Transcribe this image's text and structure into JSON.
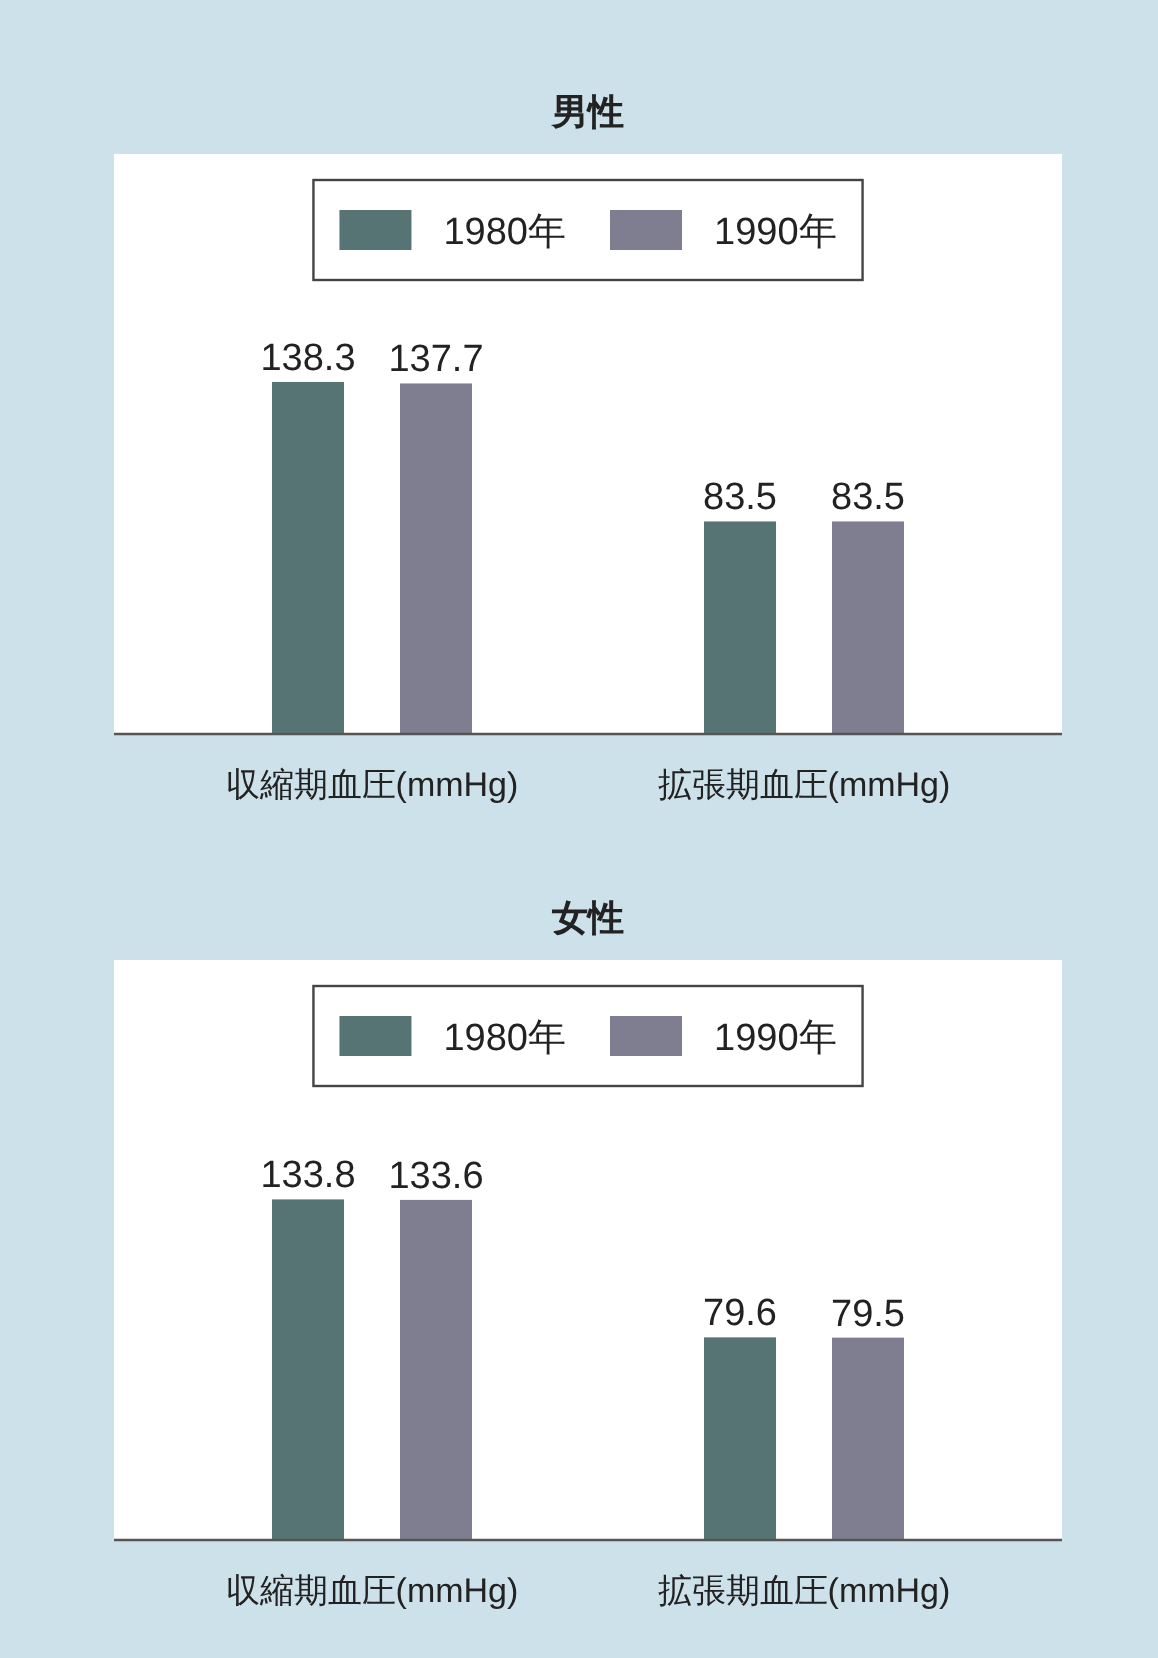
{
  "chart_data": [
    {
      "type": "bar",
      "title": "男性",
      "categories": [
        "収縮期血圧(mmHg)",
        "拡張期血圧(mmHg)"
      ],
      "series": [
        {
          "name": "1980年",
          "color": "#567474",
          "values": [
            138.3,
            83.5
          ]
        },
        {
          "name": "1990年",
          "color": "#7e7e90",
          "values": [
            137.7,
            83.5
          ]
        }
      ],
      "data_labels": true,
      "legend": "top"
    },
    {
      "type": "bar",
      "title": "女性",
      "categories": [
        "収縮期血圧(mmHg)",
        "拡張期血圧(mmHg)"
      ],
      "series": [
        {
          "name": "1980年",
          "color": "#567474",
          "values": [
            133.8,
            79.6
          ]
        },
        {
          "name": "1990年",
          "color": "#7e7e90",
          "values": [
            133.6,
            79.5
          ]
        }
      ],
      "data_labels": true,
      "legend": "top"
    }
  ]
}
